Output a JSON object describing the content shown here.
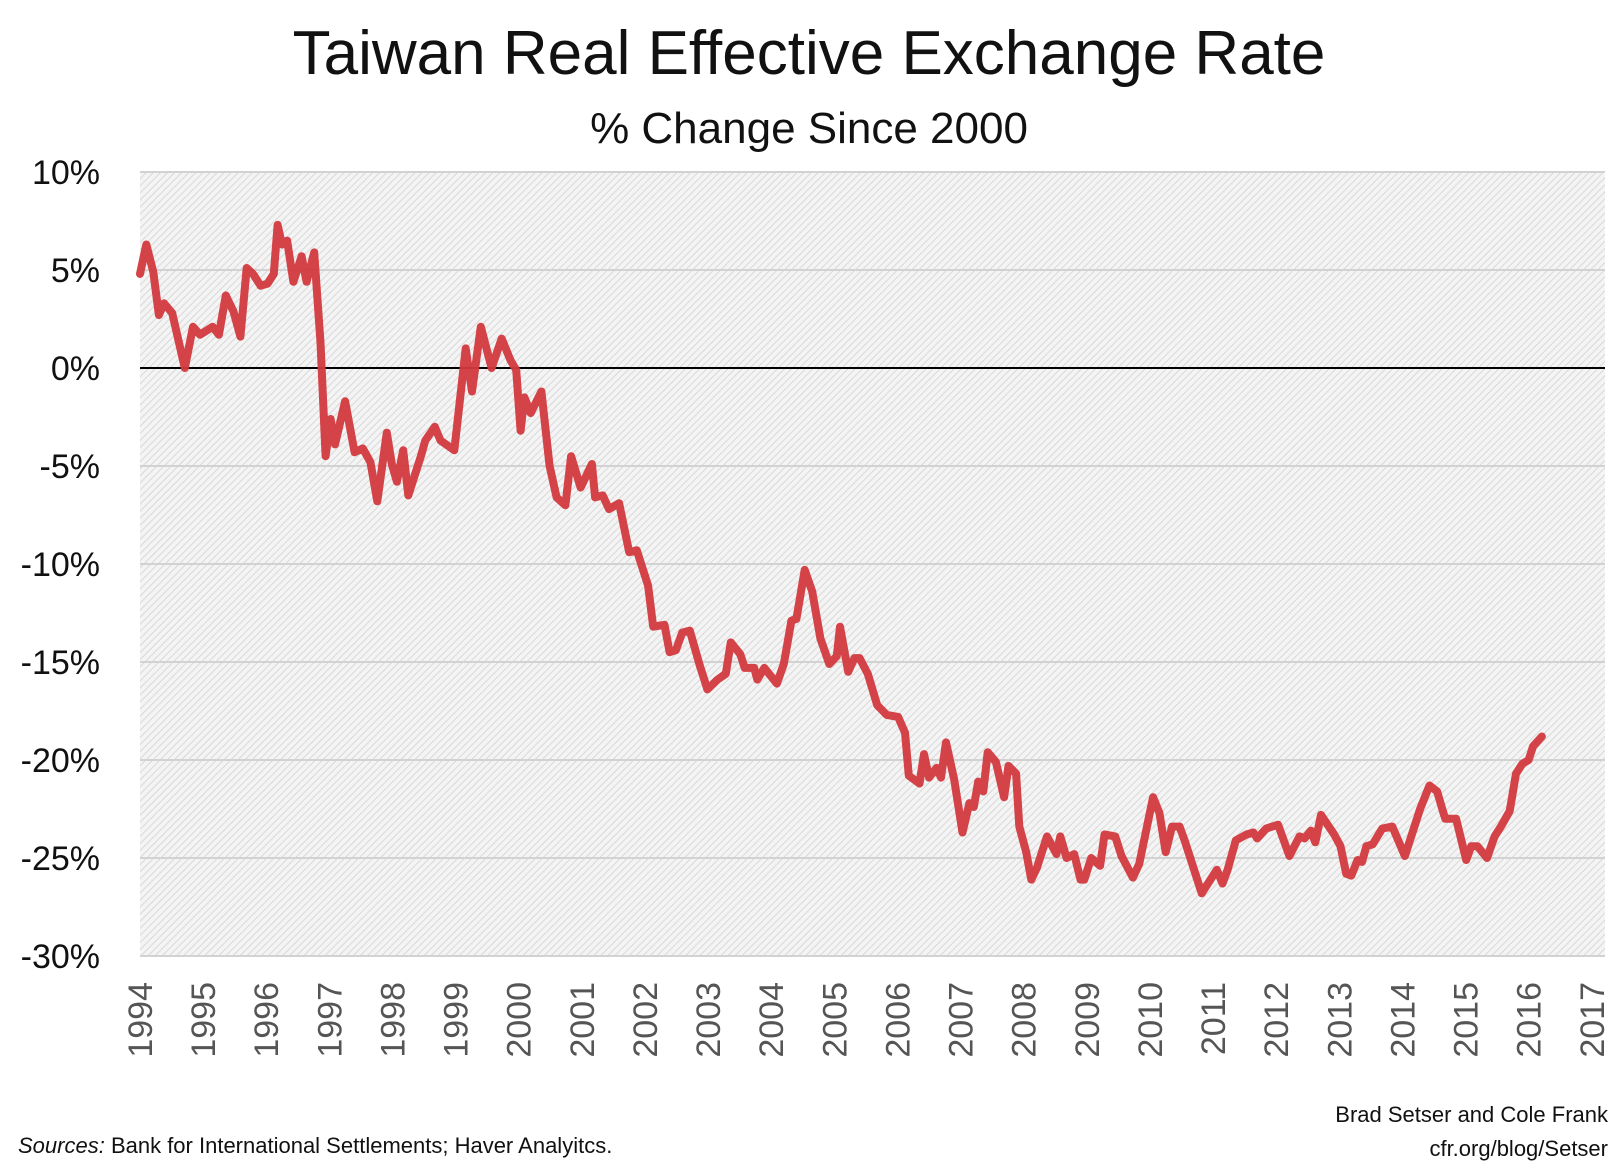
{
  "chart_data": {
    "type": "line",
    "title": "Taiwan Real Effective Exchange Rate",
    "subtitle": "% Change Since 2000",
    "xlabel": "",
    "ylabel": "",
    "xlim": [
      1994,
      2017
    ],
    "ylim": [
      -30,
      10
    ],
    "grid": true,
    "yticks": [
      10,
      5,
      0,
      -5,
      -10,
      -15,
      -20,
      -25,
      -30
    ],
    "ytick_labels": [
      "10%",
      "5%",
      "0%",
      "-5%",
      "-10%",
      "-15%",
      "-20%",
      "-25%",
      "-30%"
    ],
    "xtick_labels": [
      "1994",
      "1995",
      "1996",
      "1997",
      "1998",
      "1999",
      "2000",
      "2001",
      "2002",
      "2003",
      "2004",
      "2005",
      "2006",
      "2007",
      "2008",
      "2009",
      "2010",
      "2011",
      "2012",
      "2013",
      "2014",
      "2015",
      "2016",
      "2017"
    ],
    "line_color": "#d2393e",
    "zero_line_color": "#000000",
    "series": [
      {
        "points": [
          [
            1994.0,
            4.8
          ],
          [
            1994.1,
            6.3
          ],
          [
            1994.21,
            4.9
          ],
          [
            1994.3,
            2.7
          ],
          [
            1994.38,
            3.3
          ],
          [
            1994.51,
            2.8
          ],
          [
            1994.71,
            0.0
          ],
          [
            1994.84,
            2.1
          ],
          [
            1994.95,
            1.7
          ],
          [
            1995.15,
            2.1
          ],
          [
            1995.25,
            1.7
          ],
          [
            1995.36,
            3.7
          ],
          [
            1995.48,
            2.9
          ],
          [
            1995.59,
            1.6
          ],
          [
            1995.69,
            5.1
          ],
          [
            1995.79,
            4.8
          ],
          [
            1995.91,
            4.2
          ],
          [
            1996.02,
            4.3
          ],
          [
            1996.12,
            4.8
          ],
          [
            1996.18,
            7.3
          ],
          [
            1996.25,
            6.3
          ],
          [
            1996.33,
            6.5
          ],
          [
            1996.43,
            4.4
          ],
          [
            1996.56,
            5.7
          ],
          [
            1996.64,
            4.4
          ],
          [
            1996.76,
            5.9
          ],
          [
            1996.86,
            1.3
          ],
          [
            1996.94,
            -4.5
          ],
          [
            1997.02,
            -2.6
          ],
          [
            1997.09,
            -3.9
          ],
          [
            1997.25,
            -1.7
          ],
          [
            1997.4,
            -4.3
          ],
          [
            1997.53,
            -4.1
          ],
          [
            1997.65,
            -4.8
          ],
          [
            1997.76,
            -6.8
          ],
          [
            1997.91,
            -3.3
          ],
          [
            1997.99,
            -4.9
          ],
          [
            1998.07,
            -5.8
          ],
          [
            1998.17,
            -4.2
          ],
          [
            1998.25,
            -6.5
          ],
          [
            1998.45,
            -4.5
          ],
          [
            1998.52,
            -3.7
          ],
          [
            1998.67,
            -3.0
          ],
          [
            1998.76,
            -3.7
          ],
          [
            1998.98,
            -4.2
          ],
          [
            1999.16,
            1.0
          ],
          [
            1999.26,
            -1.2
          ],
          [
            1999.4,
            2.1
          ],
          [
            1999.57,
            0.0
          ],
          [
            1999.73,
            1.5
          ],
          [
            1999.87,
            0.4
          ],
          [
            1999.96,
            -0.1
          ],
          [
            2000.03,
            -3.2
          ],
          [
            2000.09,
            -1.5
          ],
          [
            2000.19,
            -2.3
          ],
          [
            2000.36,
            -1.2
          ],
          [
            2000.49,
            -5.0
          ],
          [
            2000.6,
            -6.6
          ],
          [
            2000.74,
            -7.0
          ],
          [
            2000.83,
            -4.5
          ],
          [
            2000.98,
            -6.1
          ],
          [
            2001.16,
            -4.9
          ],
          [
            2001.21,
            -6.6
          ],
          [
            2001.33,
            -6.5
          ],
          [
            2001.43,
            -7.2
          ],
          [
            2001.59,
            -6.9
          ],
          [
            2001.75,
            -9.4
          ],
          [
            2001.87,
            -9.3
          ],
          [
            2002.05,
            -11.1
          ],
          [
            2002.13,
            -13.2
          ],
          [
            2002.31,
            -13.1
          ],
          [
            2002.39,
            -14.5
          ],
          [
            2002.49,
            -14.4
          ],
          [
            2002.59,
            -13.5
          ],
          [
            2002.71,
            -13.4
          ],
          [
            2002.87,
            -15.2
          ],
          [
            2002.99,
            -16.4
          ],
          [
            2003.15,
            -15.9
          ],
          [
            2003.28,
            -15.6
          ],
          [
            2003.36,
            -14.0
          ],
          [
            2003.51,
            -14.6
          ],
          [
            2003.58,
            -15.3
          ],
          [
            2003.73,
            -15.3
          ],
          [
            2003.78,
            -15.9
          ],
          [
            2003.89,
            -15.3
          ],
          [
            2004.09,
            -16.1
          ],
          [
            2004.2,
            -15.1
          ],
          [
            2004.32,
            -12.9
          ],
          [
            2004.4,
            -12.8
          ],
          [
            2004.53,
            -10.3
          ],
          [
            2004.65,
            -11.4
          ],
          [
            2004.78,
            -13.8
          ],
          [
            2004.92,
            -15.1
          ],
          [
            2005.04,
            -14.7
          ],
          [
            2005.09,
            -13.2
          ],
          [
            2005.22,
            -15.5
          ],
          [
            2005.32,
            -14.8
          ],
          [
            2005.4,
            -14.8
          ],
          [
            2005.53,
            -15.6
          ],
          [
            2005.68,
            -17.2
          ],
          [
            2005.83,
            -17.7
          ],
          [
            2006.01,
            -17.8
          ],
          [
            2006.12,
            -18.6
          ],
          [
            2006.18,
            -20.8
          ],
          [
            2006.35,
            -21.2
          ],
          [
            2006.42,
            -19.7
          ],
          [
            2006.5,
            -20.9
          ],
          [
            2006.62,
            -20.4
          ],
          [
            2006.69,
            -20.9
          ],
          [
            2006.77,
            -19.1
          ],
          [
            2006.9,
            -21.0
          ],
          [
            2007.03,
            -23.7
          ],
          [
            2007.14,
            -22.2
          ],
          [
            2007.21,
            -22.4
          ],
          [
            2007.28,
            -21.1
          ],
          [
            2007.36,
            -21.6
          ],
          [
            2007.43,
            -19.6
          ],
          [
            2007.56,
            -20.1
          ],
          [
            2007.69,
            -21.9
          ],
          [
            2007.76,
            -20.3
          ],
          [
            2007.88,
            -20.7
          ],
          [
            2007.93,
            -23.4
          ],
          [
            2008.04,
            -24.7
          ],
          [
            2008.12,
            -26.1
          ],
          [
            2008.21,
            -25.5
          ],
          [
            2008.37,
            -23.9
          ],
          [
            2008.52,
            -24.8
          ],
          [
            2008.58,
            -23.9
          ],
          [
            2008.68,
            -25.0
          ],
          [
            2008.8,
            -24.8
          ],
          [
            2008.9,
            -26.1
          ],
          [
            2008.96,
            -26.1
          ],
          [
            2009.07,
            -25.0
          ],
          [
            2009.21,
            -25.4
          ],
          [
            2009.28,
            -23.8
          ],
          [
            2009.45,
            -23.9
          ],
          [
            2009.55,
            -24.9
          ],
          [
            2009.73,
            -26.0
          ],
          [
            2009.83,
            -25.3
          ],
          [
            2010.05,
            -21.9
          ],
          [
            2010.15,
            -22.7
          ],
          [
            2010.25,
            -24.7
          ],
          [
            2010.35,
            -23.4
          ],
          [
            2010.47,
            -23.4
          ],
          [
            2010.55,
            -24.1
          ],
          [
            2010.82,
            -26.8
          ],
          [
            2011.06,
            -25.6
          ],
          [
            2011.15,
            -26.3
          ],
          [
            2011.23,
            -25.6
          ],
          [
            2011.36,
            -24.1
          ],
          [
            2011.53,
            -23.8
          ],
          [
            2011.64,
            -23.7
          ],
          [
            2011.7,
            -24.0
          ],
          [
            2011.84,
            -23.5
          ],
          [
            2012.03,
            -23.3
          ],
          [
            2012.21,
            -24.9
          ],
          [
            2012.37,
            -23.9
          ],
          [
            2012.45,
            -24.0
          ],
          [
            2012.55,
            -23.6
          ],
          [
            2012.62,
            -24.2
          ],
          [
            2012.71,
            -22.8
          ],
          [
            2012.92,
            -23.8
          ],
          [
            2013.02,
            -24.4
          ],
          [
            2013.11,
            -25.8
          ],
          [
            2013.19,
            -25.9
          ],
          [
            2013.29,
            -25.1
          ],
          [
            2013.36,
            -25.2
          ],
          [
            2013.43,
            -24.4
          ],
          [
            2013.53,
            -24.3
          ],
          [
            2013.68,
            -23.5
          ],
          [
            2013.84,
            -23.4
          ],
          [
            2014.04,
            -24.9
          ],
          [
            2014.28,
            -22.5
          ],
          [
            2014.43,
            -21.3
          ],
          [
            2014.55,
            -21.6
          ],
          [
            2014.65,
            -22.7
          ],
          [
            2014.68,
            -23.0
          ],
          [
            2014.85,
            -23.0
          ],
          [
            2015.01,
            -25.1
          ],
          [
            2015.09,
            -24.4
          ],
          [
            2015.19,
            -24.4
          ],
          [
            2015.34,
            -25.0
          ],
          [
            2015.46,
            -23.9
          ],
          [
            2015.56,
            -23.4
          ],
          [
            2015.7,
            -22.6
          ],
          [
            2015.8,
            -20.7
          ],
          [
            2015.9,
            -20.2
          ],
          [
            2016.0,
            -20.0
          ],
          [
            2016.07,
            -19.3
          ],
          [
            2016.21,
            -18.8
          ]
        ]
      }
    ]
  },
  "footer": {
    "sources_label": "Sources:",
    "sources_text": " Bank for International Settlements; Haver Analyitcs.",
    "credit_line1": "Brad Setser and Cole Frank",
    "credit_line2": "cfr.org/blog/Setser"
  }
}
